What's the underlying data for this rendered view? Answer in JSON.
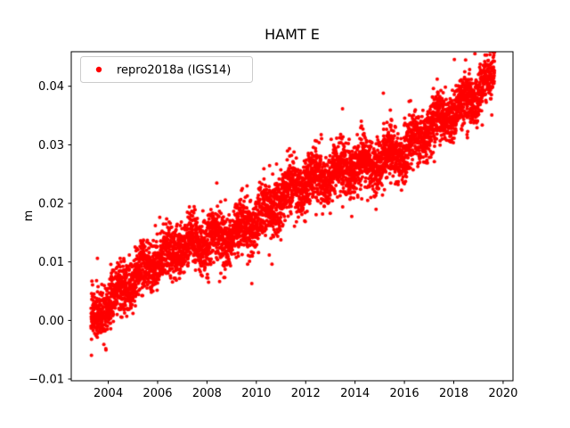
{
  "figure": {
    "title": "HAMT E",
    "ylabel": "m",
    "legend": {
      "label": "repro2018a (IGS14)",
      "marker_color": "#ff0000"
    }
  },
  "chart_data": {
    "type": "scatter",
    "title": "HAMT E",
    "xlabel": "",
    "ylabel": "m",
    "legend_entries": [
      "repro2018a (IGS14)"
    ],
    "legend_position": "upper left",
    "grid": false,
    "marker": {
      "shape": "circle",
      "color": "#ff0000",
      "radius_px": 2
    },
    "xlim": [
      2002.5,
      2020.4
    ],
    "ylim": [
      -0.0103,
      0.0459
    ],
    "x_ticks": [
      2004,
      2006,
      2008,
      2010,
      2012,
      2014,
      2016,
      2018,
      2020
    ],
    "x_tick_labels": [
      "2004",
      "2006",
      "2008",
      "2010",
      "2012",
      "2014",
      "2016",
      "2018",
      "2020"
    ],
    "y_ticks": [
      -0.01,
      0.0,
      0.01,
      0.02,
      0.03,
      0.04
    ],
    "y_tick_labels": [
      "−0.01",
      "0.00",
      "0.01",
      "0.02",
      "0.03",
      "0.04"
    ],
    "series": [
      {
        "name": "repro2018a (IGS14)",
        "color": "#ff0000",
        "x_start": 2003.3,
        "x_end": 2019.65,
        "n_points": 5200,
        "trend_anchors": {
          "x": [
            2003.3,
            2004,
            2005,
            2006,
            2007,
            2008,
            2009,
            2010,
            2011,
            2012,
            2013,
            2014,
            2015,
            2016,
            2017,
            2018,
            2019,
            2019.65
          ],
          "y": [
            0.0,
            0.003,
            0.007,
            0.01,
            0.013,
            0.0135,
            0.0145,
            0.017,
            0.021,
            0.0235,
            0.025,
            0.026,
            0.027,
            0.029,
            0.033,
            0.036,
            0.039,
            0.042
          ]
        },
        "seasonal_amplitude": 0.0012,
        "noise_sd": 0.0022,
        "outlier_fraction": 0.02,
        "outlier_extra_sd": 0.004,
        "seed": 42
      }
    ]
  }
}
